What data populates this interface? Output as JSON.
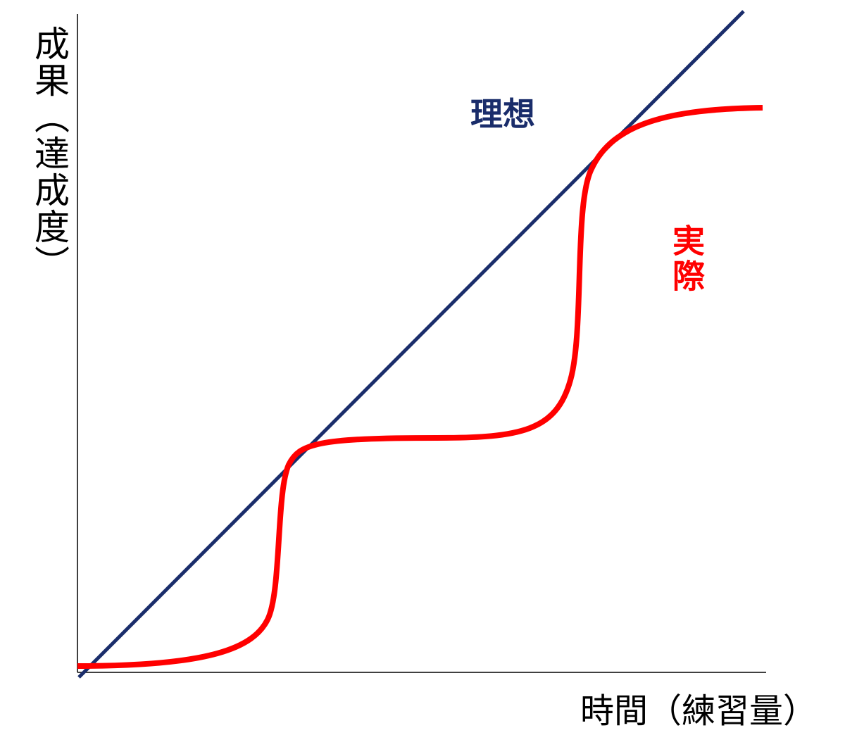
{
  "axes": {
    "y_label": "成果（達成度）",
    "x_label": "時間（練習量）"
  },
  "lines": {
    "ideal": "理想",
    "actual": "実際"
  }
}
